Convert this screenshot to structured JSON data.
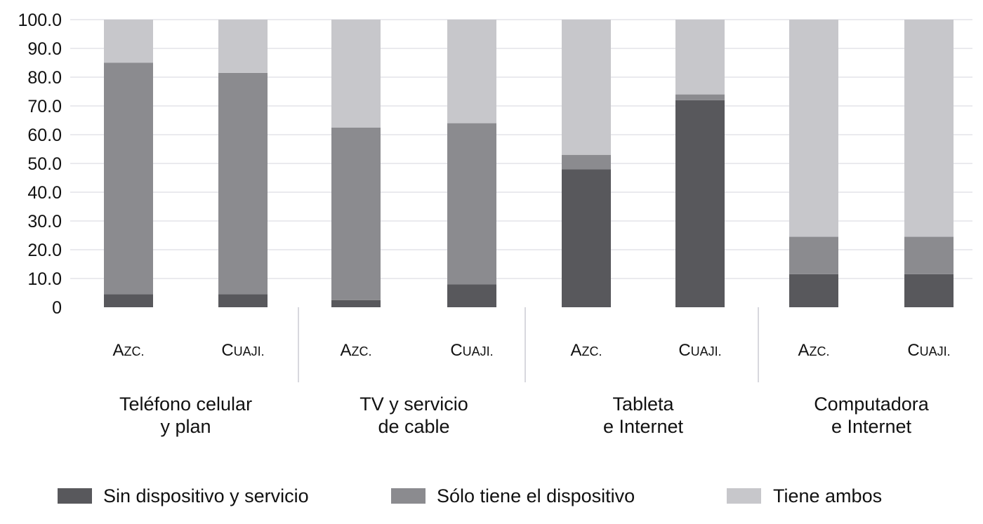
{
  "chart_data": {
    "type": "bar",
    "stacked": true,
    "ylim": [
      0,
      100
    ],
    "yticks": [
      "0",
      "10.0",
      "20.0",
      "30.0",
      "40.0",
      "50.0",
      "60.0",
      "70.0",
      "80.0",
      "90.0",
      "100.0"
    ],
    "grid": true,
    "groups": [
      {
        "label_lines": [
          "Teléfono celular",
          "y plan"
        ],
        "categories": [
          {
            "label_cap": "A",
            "label_rest": "ZC."
          },
          {
            "label_cap": "C",
            "label_rest": "UAJI."
          }
        ]
      },
      {
        "label_lines": [
          "TV y servicio",
          "de cable"
        ],
        "categories": [
          {
            "label_cap": "A",
            "label_rest": "ZC."
          },
          {
            "label_cap": "C",
            "label_rest": "UAJI."
          }
        ]
      },
      {
        "label_lines": [
          "Tableta",
          "e Internet"
        ],
        "categories": [
          {
            "label_cap": "A",
            "label_rest": "ZC."
          },
          {
            "label_cap": "C",
            "label_rest": "UAJI."
          }
        ]
      },
      {
        "label_lines": [
          "Computadora",
          "e Internet"
        ],
        "categories": [
          {
            "label_cap": "A",
            "label_rest": "ZC."
          },
          {
            "label_cap": "C",
            "label_rest": "UAJI."
          }
        ]
      }
    ],
    "series": [
      {
        "name": "Sin dispositivo y servicio",
        "color": "#58585c",
        "values": [
          4.5,
          4.5,
          2.5,
          8.0,
          48.0,
          72.0,
          11.5,
          11.5
        ]
      },
      {
        "name": "Sólo tiene el dispositivo",
        "color": "#8b8b8f",
        "values": [
          80.5,
          77.0,
          60.0,
          56.0,
          5.0,
          2.0,
          13.0,
          13.0
        ]
      },
      {
        "name": "Tiene ambos",
        "color": "#c7c7cb",
        "values": [
          15.0,
          18.5,
          37.5,
          36.0,
          47.0,
          26.0,
          75.5,
          75.5
        ]
      }
    ],
    "legend_position": "bottom"
  }
}
